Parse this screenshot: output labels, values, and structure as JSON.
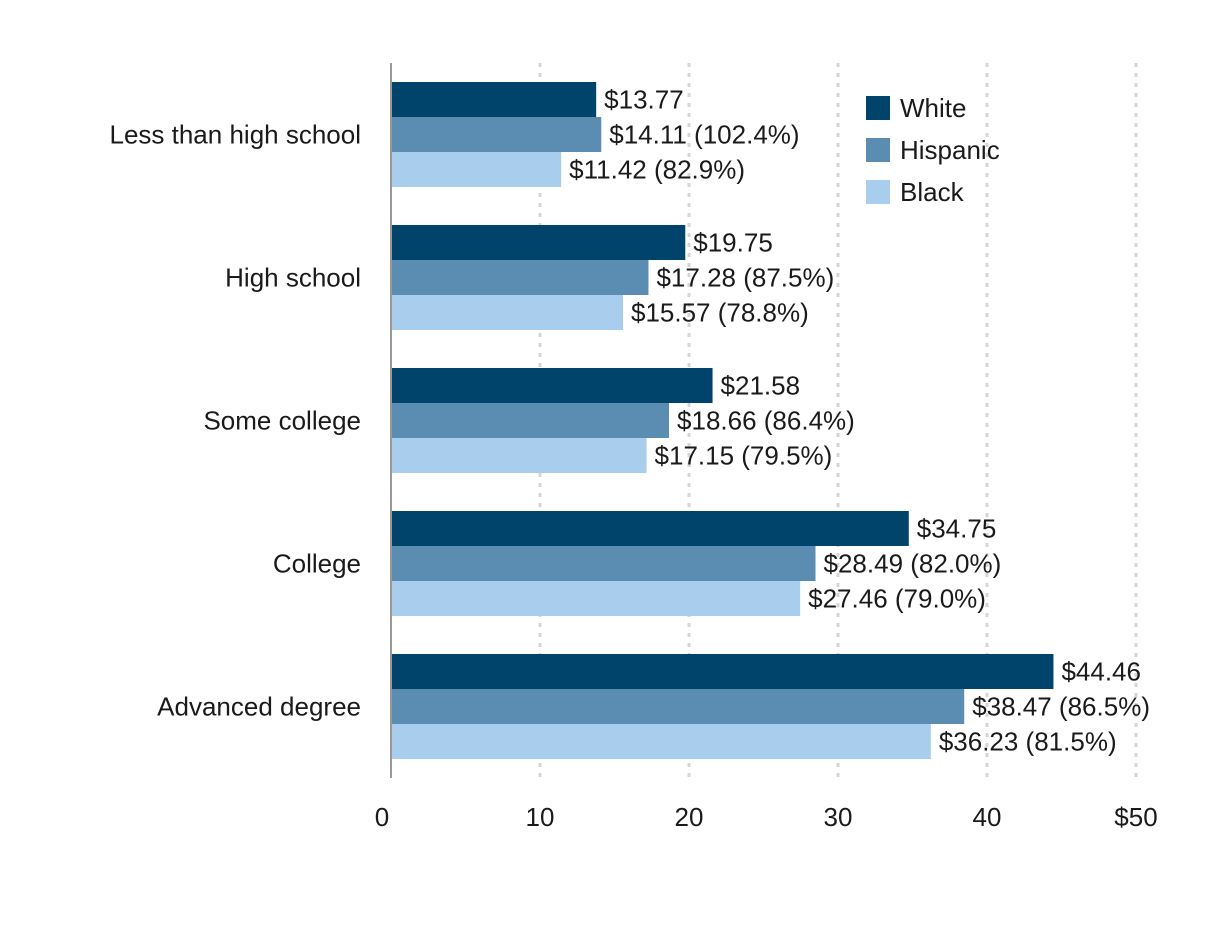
{
  "chart_data": {
    "type": "bar",
    "orientation": "horizontal",
    "categories": [
      "Less than high school",
      "High school",
      "Some college",
      "College",
      "Advanced degree"
    ],
    "series": [
      {
        "name": "White",
        "color": "#00436b",
        "values": [
          13.77,
          19.75,
          21.58,
          34.75,
          44.46
        ],
        "labels": [
          "$13.77",
          "$19.75",
          "$21.58",
          "$34.75",
          "$44.46"
        ]
      },
      {
        "name": "Hispanic",
        "color": "#5b8db3",
        "values": [
          14.11,
          17.28,
          18.66,
          28.49,
          38.47
        ],
        "labels": [
          "$14.11 (102.4%)",
          "$17.28 (87.5%)",
          "$18.66 (86.4%)",
          "$28.49 (82.0%)",
          "$38.47 (86.5%)"
        ]
      },
      {
        "name": "Black",
        "color": "#a9cded",
        "values": [
          11.42,
          15.57,
          17.15,
          27.46,
          36.23
        ],
        "labels": [
          "$11.42 (82.9%)",
          "$15.57 (78.8%)",
          "$17.15 (79.5%)",
          "$27.46 (79.0%)",
          "$36.23 (81.5%)"
        ]
      }
    ],
    "xlim": [
      0,
      50
    ],
    "xticks": [
      0,
      10,
      20,
      30,
      40,
      50
    ],
    "xtick_labels": [
      "0",
      "10",
      "20",
      "30",
      "40",
      "$50"
    ],
    "grid": "vertical dotted",
    "legend_position": "top-right",
    "title": "",
    "xlabel": "",
    "ylabel": ""
  }
}
